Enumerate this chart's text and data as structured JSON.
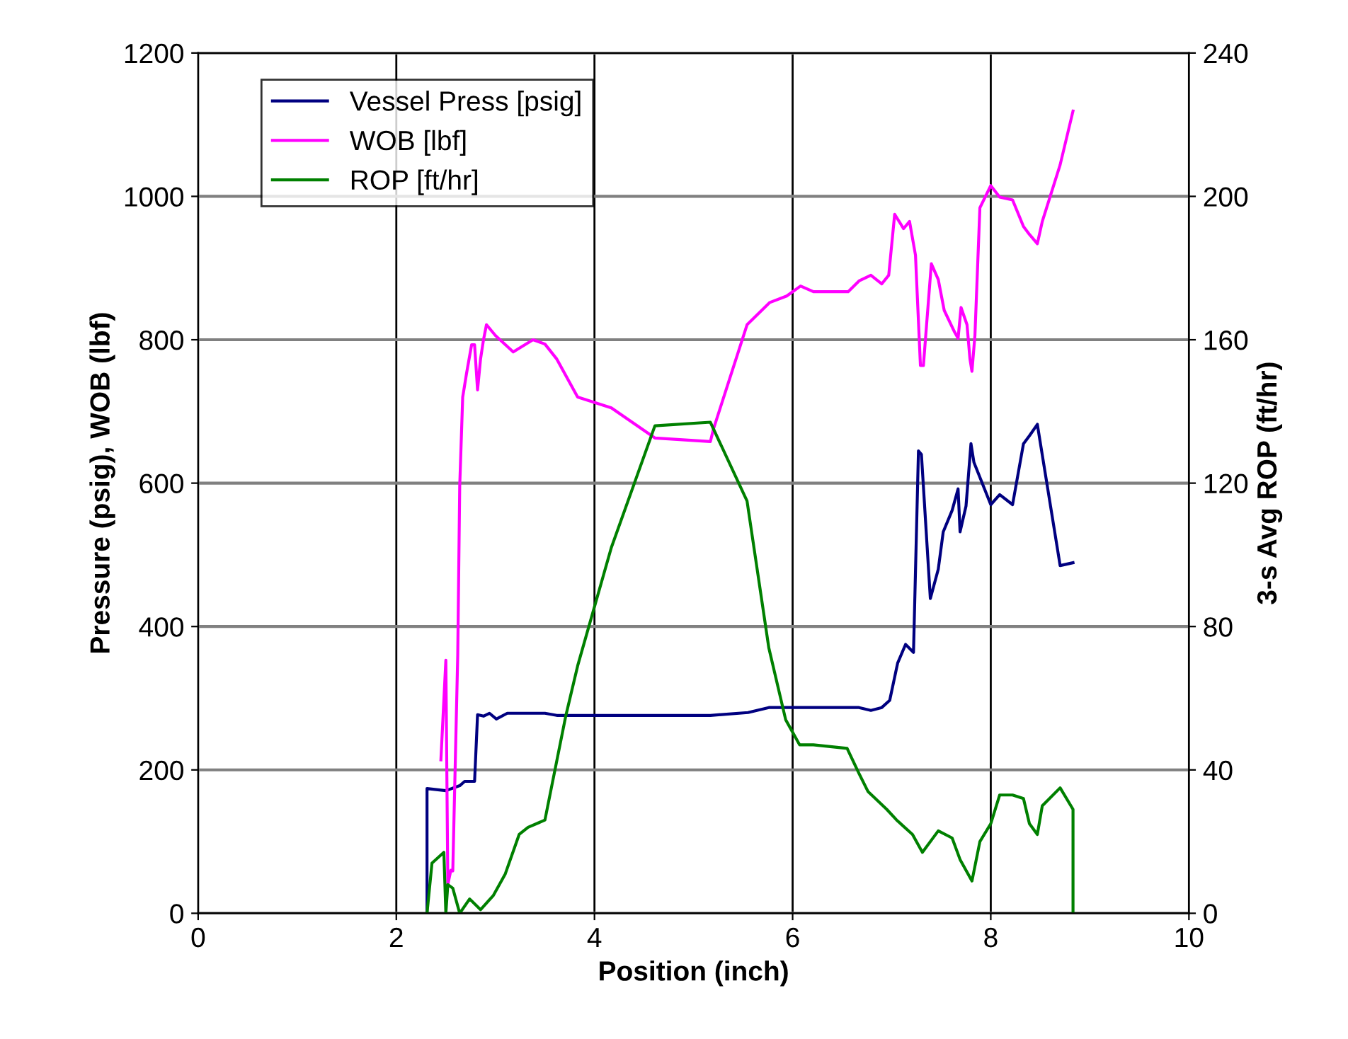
{
  "chart_data": {
    "type": "line",
    "xlabel": "Position (inch)",
    "ylabel": "Pressure (psig), WOB (lbf)",
    "y2label": "3-s Avg ROP (ft/hr)",
    "xlim": [
      0,
      10
    ],
    "xticks": [
      0,
      2,
      4,
      6,
      8,
      10
    ],
    "ylim": [
      0,
      1200
    ],
    "yticks": [
      0,
      200,
      400,
      600,
      800,
      1000,
      1200
    ],
    "y2lim": [
      0,
      240
    ],
    "y2ticks": [
      0,
      40,
      80,
      120,
      160,
      200,
      240
    ],
    "grid": true,
    "legend": "top left",
    "marker": "none",
    "line_style": "solid",
    "series": [
      {
        "name": "Vessel Press [psig]",
        "color": "#000080",
        "x": [
          2.31,
          2.31,
          2.5,
          2.64,
          2.69,
          2.79,
          2.82,
          2.88,
          2.94,
          3.01,
          3.12,
          3.5,
          3.62,
          5.17,
          5.55,
          5.76,
          6.67,
          6.79,
          6.9,
          6.98,
          7.06,
          7.14,
          7.22,
          7.27,
          7.3,
          7.39,
          7.47,
          7.52,
          7.61,
          7.67,
          7.69,
          7.75,
          7.8,
          7.83,
          8.0,
          8.09,
          8.22,
          8.33,
          8.39,
          8.47,
          8.7,
          8.83
        ],
        "values": [
          0,
          174,
          171,
          178,
          184,
          184,
          277,
          275,
          279,
          271,
          279,
          279,
          276,
          276,
          280,
          287,
          287,
          283,
          287,
          297,
          349,
          375,
          364,
          645,
          640,
          439,
          480,
          532,
          562,
          592,
          532,
          568,
          655,
          629,
          570,
          584,
          570,
          655,
          666,
          682,
          485,
          489
        ]
      },
      {
        "name": "WOB [lbf]",
        "color": "#ff00ff",
        "x": [
          2.45,
          2.5,
          2.52,
          2.55,
          2.57,
          2.62,
          2.64,
          2.67,
          2.71,
          2.76,
          2.79,
          2.82,
          2.85,
          2.88,
          2.91,
          3.0,
          3.18,
          3.38,
          3.5,
          3.62,
          3.83,
          4.17,
          4.61,
          5.17,
          5.2,
          5.54,
          5.77,
          5.94,
          6.08,
          6.21,
          6.56,
          6.67,
          6.79,
          6.9,
          6.97,
          7.03,
          7.12,
          7.18,
          7.24,
          7.29,
          7.32,
          7.4,
          7.47,
          7.53,
          7.63,
          7.67,
          7.7,
          7.76,
          7.79,
          7.81,
          7.84,
          7.89,
          8.0,
          8.09,
          8.22,
          8.33,
          8.39,
          8.47,
          8.52,
          8.7,
          8.83
        ],
        "values": [
          214,
          353,
          40,
          60,
          59,
          360,
          596,
          720,
          754,
          793,
          793,
          730,
          773,
          800,
          821,
          806,
          783,
          800,
          794,
          773,
          720,
          705,
          663,
          658,
          675,
          821,
          852,
          861,
          875,
          867,
          867,
          882,
          890,
          878,
          890,
          975,
          955,
          965,
          918,
          764,
          764,
          906,
          884,
          841,
          812,
          802,
          845,
          821,
          773,
          756,
          806,
          984,
          1015,
          999,
          995,
          958,
          947,
          934,
          965,
          1044,
          1119
        ]
      },
      {
        "name": "ROP [ft/hr]",
        "color": "#008000",
        "axis": "y2",
        "x": [
          2.31,
          2.36,
          2.48,
          2.5,
          2.52,
          2.57,
          2.64,
          2.74,
          2.85,
          2.98,
          3.1,
          3.24,
          3.33,
          3.5,
          3.71,
          3.83,
          4.17,
          4.61,
          5.17,
          5.54,
          5.76,
          5.93,
          6.07,
          6.21,
          6.55,
          6.67,
          6.76,
          6.95,
          7.05,
          7.21,
          7.31,
          7.47,
          7.61,
          7.69,
          7.81,
          7.89,
          8.0,
          8.09,
          8.22,
          8.33,
          8.39,
          8.47,
          8.52,
          8.7,
          8.83,
          8.83
        ],
        "values": [
          0,
          14,
          17,
          0,
          8,
          7,
          0,
          4,
          1,
          5,
          11,
          22,
          24,
          26,
          55,
          69,
          102,
          136,
          137,
          115,
          74,
          54,
          47,
          47,
          46,
          39,
          34,
          29,
          26,
          22,
          17,
          23,
          21,
          15,
          9,
          20,
          25,
          33,
          33,
          32,
          25,
          22,
          30,
          35,
          29,
          0
        ]
      }
    ]
  }
}
